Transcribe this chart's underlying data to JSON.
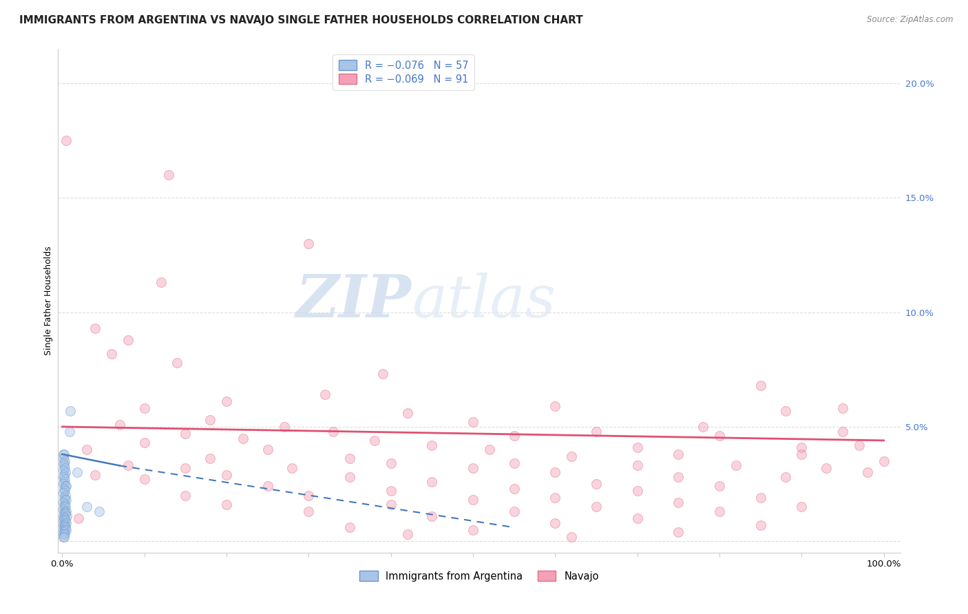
{
  "title": "IMMIGRANTS FROM ARGENTINA VS NAVAJO SINGLE FATHER HOUSEHOLDS CORRELATION CHART",
  "source": "Source: ZipAtlas.com",
  "ylabel": "Single Father Households",
  "y_ticks": [
    0.0,
    0.05,
    0.1,
    0.15,
    0.2
  ],
  "x_ticks": [
    0.0,
    0.1,
    0.2,
    0.3,
    0.4,
    0.5,
    0.6,
    0.7,
    0.8,
    0.9,
    1.0
  ],
  "argentina_color": "#aac4e8",
  "navajo_color": "#f5a0b5",
  "argentina_edge_color": "#6699cc",
  "navajo_edge_color": "#e07090",
  "argentina_line_color": "#4477bb",
  "navajo_line_color": "#e05070",
  "tick_label_color": "#4477cc",
  "watermark_color": "#d0dff0",
  "background_color": "#ffffff",
  "grid_color": "#dddddd",
  "title_fontsize": 11,
  "axis_fontsize": 9,
  "tick_fontsize": 9.5,
  "marker_size": 100,
  "marker_alpha": 0.45,
  "xlim": [
    -0.005,
    1.02
  ],
  "ylim": [
    -0.005,
    0.215
  ],
  "argentina_line": [
    [
      0.0,
      0.038
    ],
    [
      0.55,
      0.006
    ]
  ],
  "navajo_line": [
    [
      0.0,
      0.05
    ],
    [
      1.0,
      0.044
    ]
  ],
  "argentina_points": [
    [
      0.001,
      0.038
    ],
    [
      0.002,
      0.038
    ],
    [
      0.001,
      0.036
    ],
    [
      0.003,
      0.035
    ],
    [
      0.001,
      0.034
    ],
    [
      0.002,
      0.033
    ],
    [
      0.003,
      0.032
    ],
    [
      0.001,
      0.031
    ],
    [
      0.004,
      0.03
    ],
    [
      0.002,
      0.029
    ],
    [
      0.001,
      0.028
    ],
    [
      0.003,
      0.027
    ],
    [
      0.002,
      0.026
    ],
    [
      0.001,
      0.025
    ],
    [
      0.004,
      0.024
    ],
    [
      0.005,
      0.024
    ],
    [
      0.002,
      0.023
    ],
    [
      0.003,
      0.022
    ],
    [
      0.001,
      0.021
    ],
    [
      0.004,
      0.02
    ],
    [
      0.002,
      0.019
    ],
    [
      0.003,
      0.018
    ],
    [
      0.005,
      0.018
    ],
    [
      0.001,
      0.017
    ],
    [
      0.003,
      0.016
    ],
    [
      0.002,
      0.015
    ],
    [
      0.004,
      0.015
    ],
    [
      0.001,
      0.014
    ],
    [
      0.003,
      0.013
    ],
    [
      0.005,
      0.013
    ],
    [
      0.002,
      0.012
    ],
    [
      0.004,
      0.012
    ],
    [
      0.001,
      0.011
    ],
    [
      0.006,
      0.011
    ],
    [
      0.002,
      0.01
    ],
    [
      0.003,
      0.01
    ],
    [
      0.001,
      0.009
    ],
    [
      0.004,
      0.009
    ],
    [
      0.002,
      0.008
    ],
    [
      0.005,
      0.008
    ],
    [
      0.001,
      0.007
    ],
    [
      0.003,
      0.007
    ],
    [
      0.002,
      0.006
    ],
    [
      0.004,
      0.006
    ],
    [
      0.001,
      0.005
    ],
    [
      0.003,
      0.005
    ],
    [
      0.005,
      0.005
    ],
    [
      0.002,
      0.004
    ],
    [
      0.001,
      0.003
    ],
    [
      0.003,
      0.003
    ],
    [
      0.001,
      0.002
    ],
    [
      0.002,
      0.002
    ],
    [
      0.01,
      0.057
    ],
    [
      0.009,
      0.048
    ],
    [
      0.018,
      0.03
    ],
    [
      0.03,
      0.015
    ],
    [
      0.045,
      0.013
    ]
  ],
  "navajo_points": [
    [
      0.005,
      0.175
    ],
    [
      0.13,
      0.16
    ],
    [
      0.3,
      0.13
    ],
    [
      0.12,
      0.113
    ],
    [
      0.04,
      0.093
    ],
    [
      0.08,
      0.088
    ],
    [
      0.06,
      0.082
    ],
    [
      0.14,
      0.078
    ],
    [
      0.39,
      0.073
    ],
    [
      0.85,
      0.068
    ],
    [
      0.32,
      0.064
    ],
    [
      0.2,
      0.061
    ],
    [
      0.6,
      0.059
    ],
    [
      0.1,
      0.058
    ],
    [
      0.42,
      0.056
    ],
    [
      0.18,
      0.053
    ],
    [
      0.5,
      0.052
    ],
    [
      0.07,
      0.051
    ],
    [
      0.27,
      0.05
    ],
    [
      0.65,
      0.048
    ],
    [
      0.33,
      0.048
    ],
    [
      0.15,
      0.047
    ],
    [
      0.55,
      0.046
    ],
    [
      0.8,
      0.046
    ],
    [
      0.22,
      0.045
    ],
    [
      0.38,
      0.044
    ],
    [
      0.1,
      0.043
    ],
    [
      0.45,
      0.042
    ],
    [
      0.7,
      0.041
    ],
    [
      0.9,
      0.041
    ],
    [
      0.03,
      0.04
    ],
    [
      0.25,
      0.04
    ],
    [
      0.52,
      0.04
    ],
    [
      0.75,
      0.038
    ],
    [
      0.95,
      0.058
    ],
    [
      0.88,
      0.057
    ],
    [
      0.62,
      0.037
    ],
    [
      0.18,
      0.036
    ],
    [
      0.35,
      0.036
    ],
    [
      0.55,
      0.034
    ],
    [
      0.4,
      0.034
    ],
    [
      0.08,
      0.033
    ],
    [
      0.7,
      0.033
    ],
    [
      0.82,
      0.033
    ],
    [
      0.15,
      0.032
    ],
    [
      0.28,
      0.032
    ],
    [
      0.5,
      0.032
    ],
    [
      0.93,
      0.032
    ],
    [
      0.6,
      0.03
    ],
    [
      0.98,
      0.03
    ],
    [
      0.04,
      0.029
    ],
    [
      0.2,
      0.029
    ],
    [
      0.75,
      0.028
    ],
    [
      0.35,
      0.028
    ],
    [
      0.88,
      0.028
    ],
    [
      0.1,
      0.027
    ],
    [
      0.45,
      0.026
    ],
    [
      0.65,
      0.025
    ],
    [
      0.8,
      0.024
    ],
    [
      0.25,
      0.024
    ],
    [
      0.55,
      0.023
    ],
    [
      0.4,
      0.022
    ],
    [
      0.7,
      0.022
    ],
    [
      0.15,
      0.02
    ],
    [
      0.3,
      0.02
    ],
    [
      0.6,
      0.019
    ],
    [
      0.85,
      0.019
    ],
    [
      0.5,
      0.018
    ],
    [
      0.75,
      0.017
    ],
    [
      0.2,
      0.016
    ],
    [
      0.4,
      0.016
    ],
    [
      0.65,
      0.015
    ],
    [
      0.9,
      0.015
    ],
    [
      0.3,
      0.013
    ],
    [
      0.55,
      0.013
    ],
    [
      0.8,
      0.013
    ],
    [
      0.45,
      0.011
    ],
    [
      0.7,
      0.01
    ],
    [
      0.02,
      0.01
    ],
    [
      0.6,
      0.008
    ],
    [
      0.85,
      0.007
    ],
    [
      0.35,
      0.006
    ],
    [
      0.5,
      0.005
    ],
    [
      0.75,
      0.004
    ],
    [
      0.42,
      0.003
    ],
    [
      0.62,
      0.002
    ],
    [
      0.95,
      0.048
    ],
    [
      0.78,
      0.05
    ],
    [
      0.9,
      0.038
    ],
    [
      0.97,
      0.042
    ],
    [
      1.0,
      0.035
    ]
  ]
}
